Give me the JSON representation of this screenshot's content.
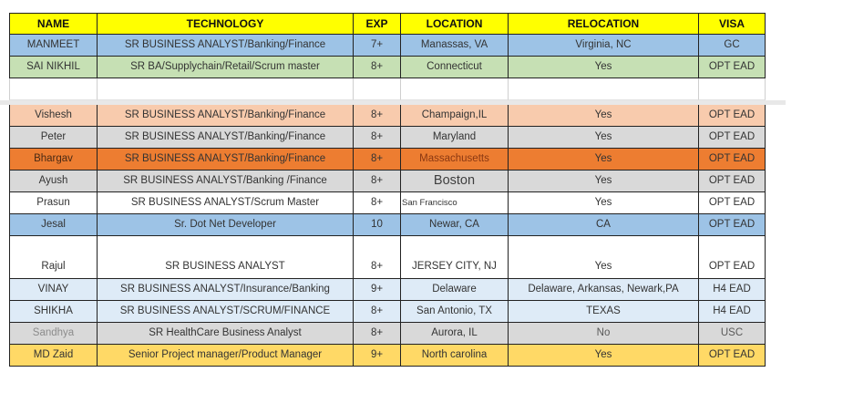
{
  "table": {
    "headers": [
      "NAME",
      "TECHNOLOGY",
      "EXP",
      "LOCATION",
      "RELOCATION",
      "VISA"
    ],
    "header_bg": "#FFFF00",
    "rows": [
      {
        "name": "MANMEET",
        "technology": "SR BUSINESS ANALYST/Banking/Finance",
        "exp": "7+",
        "location": "Manassas, VA",
        "relocation": "Virginia, NC",
        "visa": "GC",
        "bg": "#9DC3E6"
      },
      {
        "name": "SAI NIKHIL",
        "technology": "SR BA/Supplychain/Retail/Scrum master",
        "exp": "8+",
        "location": "Connecticut",
        "relocation": "Yes",
        "visa": "OPT EAD",
        "bg": "#C6E0B4"
      },
      {
        "type": "empty",
        "name": "",
        "technology": "",
        "exp": "",
        "location": "",
        "relocation": "",
        "visa": "",
        "bg": "#FFFFFF"
      },
      {
        "type": "spacer"
      },
      {
        "name": "Vishesh",
        "technology": "SR BUSINESS ANALYST/Banking/Finance",
        "exp": "8+",
        "location": "Champaign,IL",
        "relocation": "Yes",
        "visa": "OPT EAD",
        "bg": "#F8CBAD"
      },
      {
        "name": "Peter",
        "technology": "SR BUSINESS ANALYST/Banking/Finance",
        "exp": "8+",
        "location": "Maryland",
        "relocation": "Yes",
        "visa": "OPT EAD",
        "bg": "#D9D9D9"
      },
      {
        "name": "Bhargav",
        "technology": "SR BUSINESS ANALYST/Banking/Finance",
        "exp": "8+",
        "location": "Massachusetts",
        "relocation": "Yes",
        "visa": "OPT EAD",
        "bg": "#ED7D31",
        "colors": {
          "location": "#8a3812",
          "name": "#4a2a14"
        }
      },
      {
        "name": "Ayush",
        "technology": "SR BUSINESS ANALYST/Banking /Finance",
        "exp": "8+",
        "location": "Boston",
        "relocation": "Yes",
        "visa": "OPT EAD",
        "bg": "#D9D9D9",
        "mods": {
          "location": "loc-large"
        }
      },
      {
        "name": "Prasun",
        "technology": "SR BUSINESS ANALYST/Scrum Master",
        "exp": "8+",
        "location": "San Francisco",
        "relocation": "Yes",
        "visa": "OPT EAD",
        "bg": "#FFFFFF",
        "mods": {
          "location": "loc-small"
        }
      },
      {
        "name": "Jesal",
        "technology": "Sr. Dot Net Developer",
        "exp": "10",
        "location": "Newar, CA",
        "relocation": "CA",
        "visa": "OPT EAD",
        "bg": "#9DC3E6"
      },
      {
        "type": "tall",
        "name": "Rajul",
        "technology": "SR BUSINESS ANALYST",
        "exp": "8+",
        "location": "JERSEY CITY, NJ",
        "relocation": "Yes",
        "visa": "OPT EAD",
        "bg": "#FFFFFF"
      },
      {
        "name": "VINAY",
        "technology": "SR BUSINESS ANALYST/Insurance/Banking",
        "exp": "9+",
        "location": "Delaware",
        "relocation": "Delaware, Arkansas, Newark,PA",
        "visa": "H4 EAD",
        "bg": "#DEEBF7"
      },
      {
        "name": "SHIKHA",
        "technology": "SR BUSINESS ANALYST/SCRUM/FINANCE",
        "exp": "8+",
        "location": "San Antonio, TX",
        "relocation": "TEXAS",
        "visa": "H4 EAD",
        "bg": "#DEEBF7"
      },
      {
        "name": "Sandhya",
        "technology": "SR HealthCare Business Analyst",
        "exp": "8+",
        "location": "Aurora, IL",
        "relocation": "No",
        "visa": "USC",
        "bg": "#D9D9D9",
        "colors": {
          "name": "#8c8c8c",
          "relocation": "#595959",
          "visa": "#595959"
        }
      },
      {
        "name": "MD Zaid",
        "technology": "Senior Project manager/Product Manager",
        "exp": "9+",
        "location": "North carolina",
        "relocation": "Yes",
        "visa": "OPT EAD",
        "bg": "#FFD966"
      }
    ]
  }
}
